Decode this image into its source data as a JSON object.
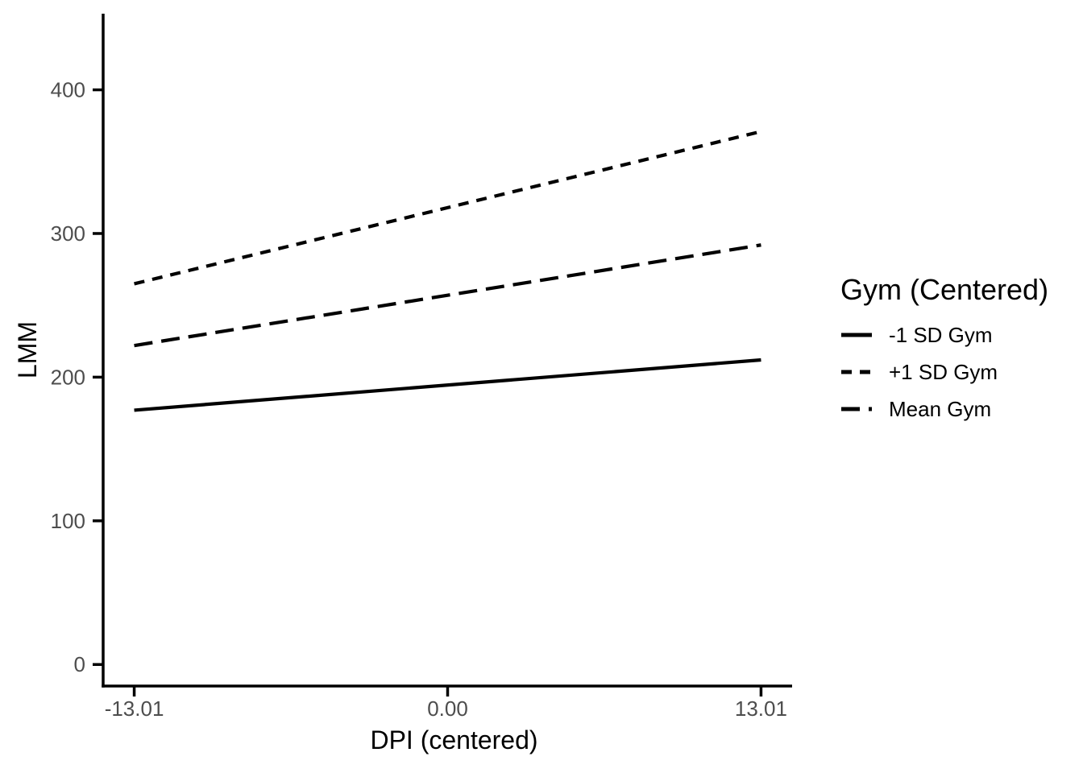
{
  "chart_data": {
    "type": "line",
    "title": "",
    "xlabel": "DPI (centered)",
    "ylabel": "LMM",
    "legend_title": "Gym (Centered)",
    "legend_position": "right",
    "grid": false,
    "background": "#ffffff",
    "axis_color": "#000000",
    "title_color": "#000000",
    "tick_label_color": "#4d4d4d",
    "line_color": "#000000",
    "x": [
      -13.01,
      13.01
    ],
    "xlim": [
      -14.3,
      14.3
    ],
    "ylim": [
      -15,
      453
    ],
    "x_ticks": [
      {
        "value": -13.01,
        "label": "-13.01"
      },
      {
        "value": 0,
        "label": "0.00"
      },
      {
        "value": 13.01,
        "label": "13.01"
      }
    ],
    "y_ticks": [
      {
        "value": 0,
        "label": "0"
      },
      {
        "value": 100,
        "label": "100"
      },
      {
        "value": 200,
        "label": "200"
      },
      {
        "value": 300,
        "label": "300"
      },
      {
        "value": 400,
        "label": "400"
      }
    ],
    "series": [
      {
        "name": "-1 SD Gym",
        "linetype": "solid",
        "values": [
          177,
          212
        ]
      },
      {
        "name": "+1 SD Gym",
        "linetype": "dashed",
        "values": [
          265,
          371
        ]
      },
      {
        "name": "Mean Gym",
        "linetype": "longdash",
        "values": [
          222,
          292
        ]
      }
    ]
  }
}
